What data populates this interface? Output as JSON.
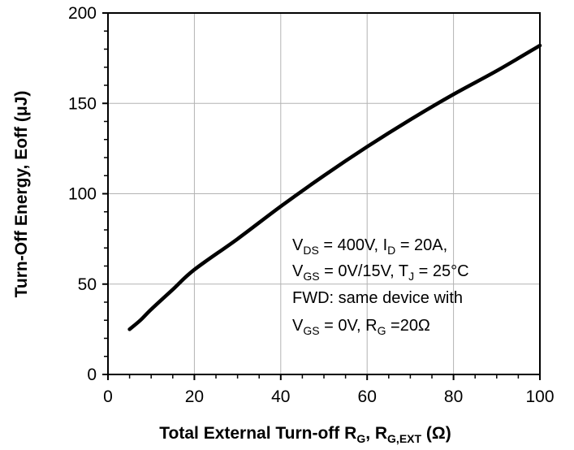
{
  "chart_data": {
    "type": "line",
    "title": "",
    "xlabel": {
      "prefix": "Total External Turn-off R",
      "sub1": "G",
      "mid": ", R",
      "sub2": "G,EXT",
      "suffix": " (Ω)"
    },
    "ylabel": "Turn-Off Energy, Eoff (μJ)",
    "xlim": [
      0,
      100
    ],
    "ylim": [
      0,
      200
    ],
    "xticks": [
      0,
      20,
      40,
      60,
      80,
      100
    ],
    "yticks": [
      0,
      50,
      100,
      150,
      200
    ],
    "x_tick_labels": [
      "0",
      "20",
      "40",
      "60",
      "80",
      "100"
    ],
    "y_tick_labels": [
      "0",
      "50",
      "100",
      "150",
      "200"
    ],
    "grid": true,
    "series": [
      {
        "x": [
          5,
          7.5,
          10,
          15,
          20,
          30,
          40,
          50,
          60,
          70,
          80,
          90,
          100
        ],
        "y": [
          25,
          30,
          36,
          47,
          58,
          75,
          93,
          110,
          126,
          141,
          155,
          168,
          182
        ]
      }
    ],
    "annotation": {
      "line1": {
        "a": "V",
        "a_sub": "DS",
        "b": " = 400V, I",
        "b_sub": "D",
        "c": " = 20A,"
      },
      "line2": {
        "a": "V",
        "a_sub": "GS",
        "b": " = 0V/15V, T",
        "b_sub": "J",
        "c": " = 25°C"
      },
      "line3": {
        "text": "FWD: same device with"
      },
      "line4": {
        "a": "V",
        "a_sub": "GS",
        "b": " = 0V, R",
        "b_sub": "G",
        "c": " =20Ω"
      }
    },
    "line_color": "#000000",
    "grid_color": "#b3b3b3"
  }
}
